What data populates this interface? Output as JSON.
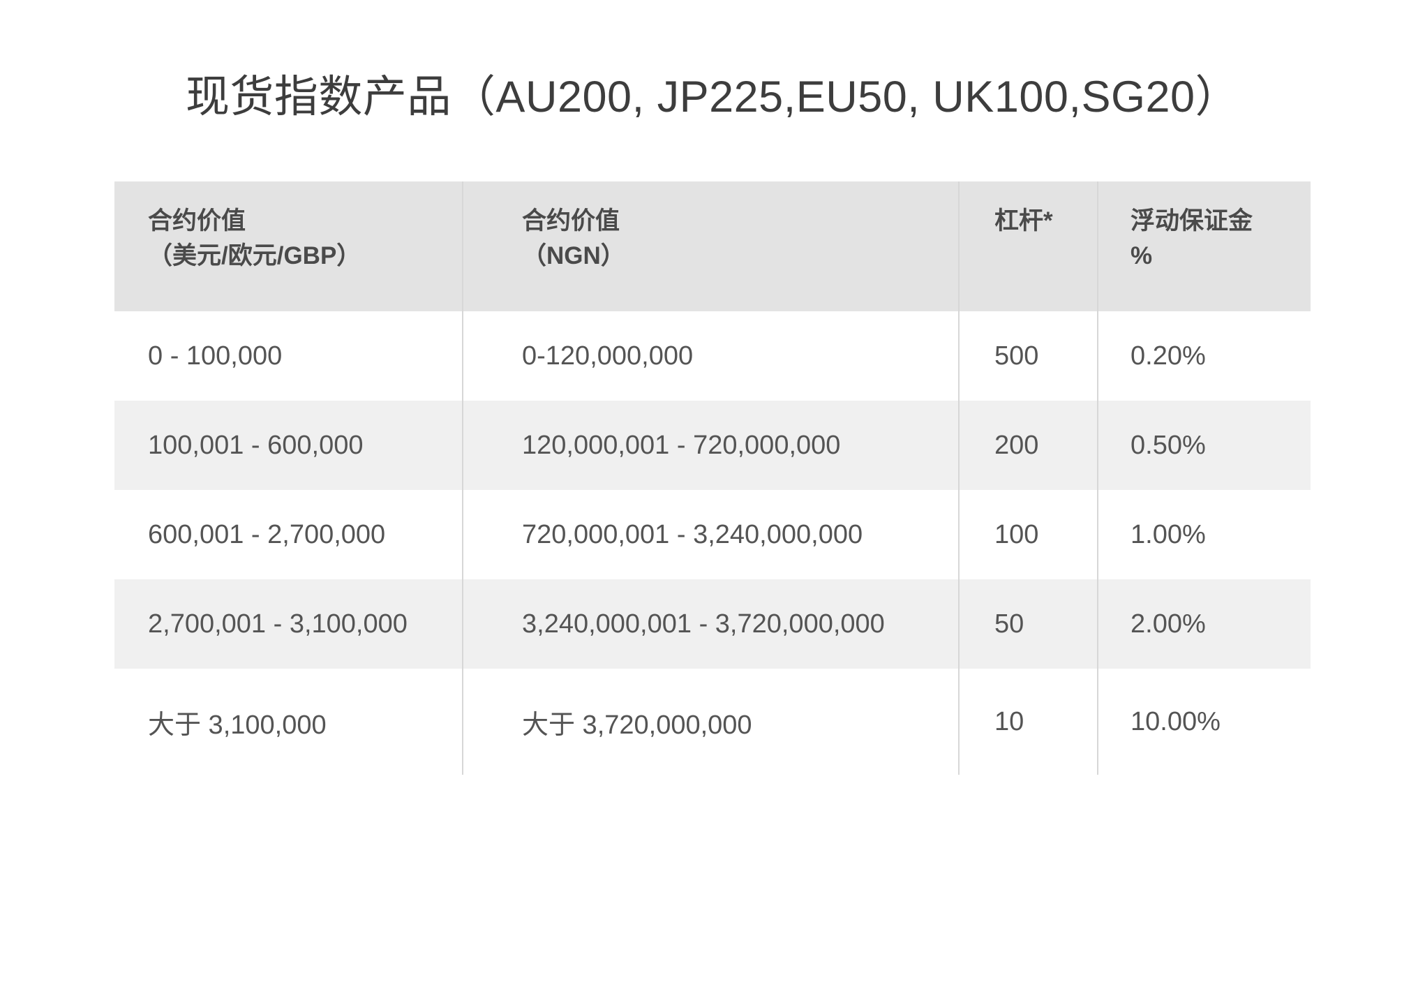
{
  "title": "现货指数产品（AU200, JP225,EU50, UK100,SG20）",
  "table": {
    "headers": [
      {
        "line1": "合约价值",
        "line2": "（美元/欧元/GBP）"
      },
      {
        "line1": "合约价值",
        "line2": "（NGN）"
      },
      {
        "line1": "杠杆*",
        "line2": ""
      },
      {
        "line1": "浮动保证金",
        "line2": "%"
      }
    ],
    "rows": [
      [
        "0 - 100,000",
        "0-120,000,000",
        "500",
        "0.20%"
      ],
      [
        "100,001 - 600,000",
        "120,000,001 - 720,000,000",
        "200",
        "0.50%"
      ],
      [
        "600,001 - 2,700,000",
        "720,000,001 - 3,240,000,000",
        "100",
        "1.00%"
      ],
      [
        "2,700,001 - 3,100,000",
        "3,240,000,001 - 3,720,000,000",
        "50",
        "2.00%"
      ],
      [
        "大于 3,100,000",
        "大于 3,720,000,000",
        "10",
        "10.00%"
      ]
    ],
    "colors": {
      "header_bg": "#e3e3e3",
      "row_bg": "#ffffff",
      "row_alt_bg": "#f0f0f0",
      "divider": "#d7d7d7",
      "title_text": "#3d3d3d",
      "header_text": "#4a4a4a",
      "body_text": "#545454"
    }
  }
}
